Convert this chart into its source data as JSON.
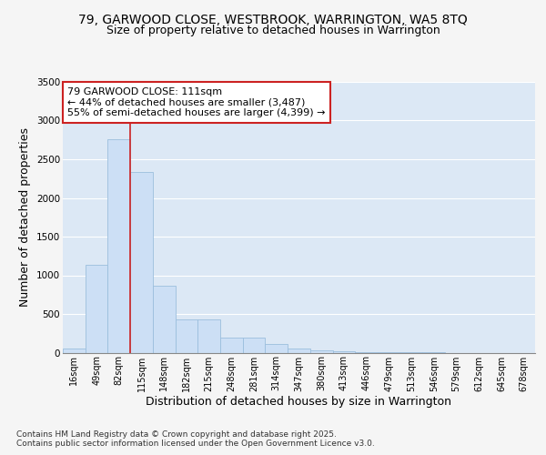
{
  "title1": "79, GARWOOD CLOSE, WESTBROOK, WARRINGTON, WA5 8TQ",
  "title2": "Size of property relative to detached houses in Warrington",
  "xlabel": "Distribution of detached houses by size in Warrington",
  "ylabel": "Number of detached properties",
  "bar_labels": [
    "16sqm",
    "49sqm",
    "82sqm",
    "115sqm",
    "148sqm",
    "182sqm",
    "215sqm",
    "248sqm",
    "281sqm",
    "314sqm",
    "347sqm",
    "380sqm",
    "413sqm",
    "446sqm",
    "479sqm",
    "513sqm",
    "546sqm",
    "579sqm",
    "612sqm",
    "645sqm",
    "678sqm"
  ],
  "bar_values": [
    55,
    1130,
    2760,
    2330,
    870,
    430,
    430,
    195,
    195,
    110,
    55,
    30,
    20,
    10,
    5,
    2,
    1,
    0,
    0,
    0,
    0
  ],
  "bar_color": "#ccdff5",
  "bar_edge_color": "#9bbedd",
  "vline_color": "#cc2222",
  "annotation_text": "79 GARWOOD CLOSE: 111sqm\n← 44% of detached houses are smaller (3,487)\n55% of semi-detached houses are larger (4,399) →",
  "annotation_box_facecolor": "#ffffff",
  "annotation_box_edgecolor": "#cc2222",
  "footnote1": "Contains HM Land Registry data © Crown copyright and database right 2025.",
  "footnote2": "Contains public sector information licensed under the Open Government Licence v3.0.",
  "ylim": [
    0,
    3500
  ],
  "yticks": [
    0,
    500,
    1000,
    1500,
    2000,
    2500,
    3000,
    3500
  ],
  "bg_color": "#dce8f5",
  "grid_color": "#ffffff",
  "fig_bg_color": "#f5f5f5",
  "title_fontsize": 10,
  "subtitle_fontsize": 9,
  "label_fontsize": 9,
  "tick_fontsize": 7,
  "footnote_fontsize": 6.5,
  "annotation_fontsize": 8
}
